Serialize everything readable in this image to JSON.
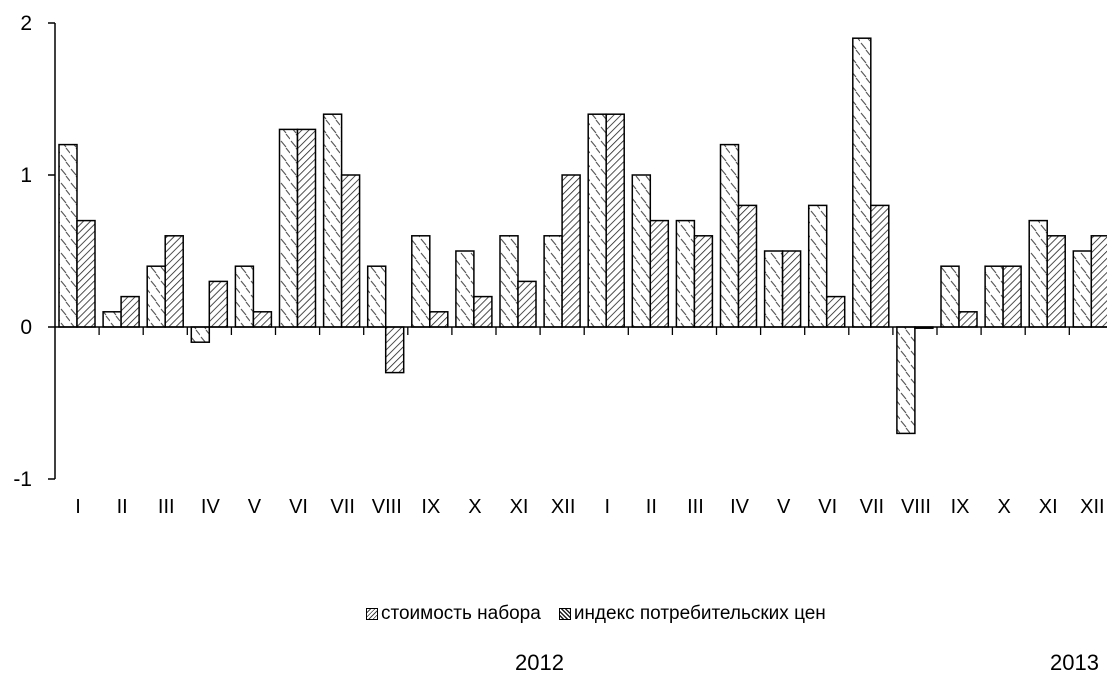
{
  "chart_data": {
    "type": "bar",
    "categories": [
      "I",
      "II",
      "III",
      "IV",
      "V",
      "VI",
      "VII",
      "VIII",
      "IX",
      "X",
      "XI",
      "XII",
      "I",
      "II",
      "III",
      "IV",
      "V",
      "VI",
      "VII",
      "VIII",
      "IX",
      "X",
      "XI",
      "XII"
    ],
    "series": [
      {
        "name": "стоимость набора",
        "values": [
          1.2,
          0.1,
          0.4,
          -0.1,
          0.4,
          1.3,
          1.4,
          0.4,
          0.6,
          0.5,
          0.6,
          0.6,
          1.4,
          1.0,
          0.7,
          1.2,
          0.5,
          0.8,
          1.9,
          -0.7,
          0.4,
          0.4,
          0.7,
          0.5
        ]
      },
      {
        "name": "индекс потребительских цен",
        "values": [
          0.7,
          0.2,
          0.6,
          0.3,
          0.1,
          1.3,
          1.0,
          -0.3,
          0.1,
          0.2,
          0.3,
          1.0,
          1.4,
          0.7,
          0.6,
          0.8,
          0.5,
          0.2,
          0.8,
          0.0,
          0.1,
          0.4,
          0.6,
          0.6
        ]
      }
    ],
    "ylim": [
      -1,
      2
    ],
    "yticks": [
      "-1",
      "0",
      "1",
      "2"
    ],
    "year_labels": [
      "2012",
      "2013"
    ],
    "xlabel": "",
    "ylabel": "",
    "legend_position": "bottom"
  }
}
